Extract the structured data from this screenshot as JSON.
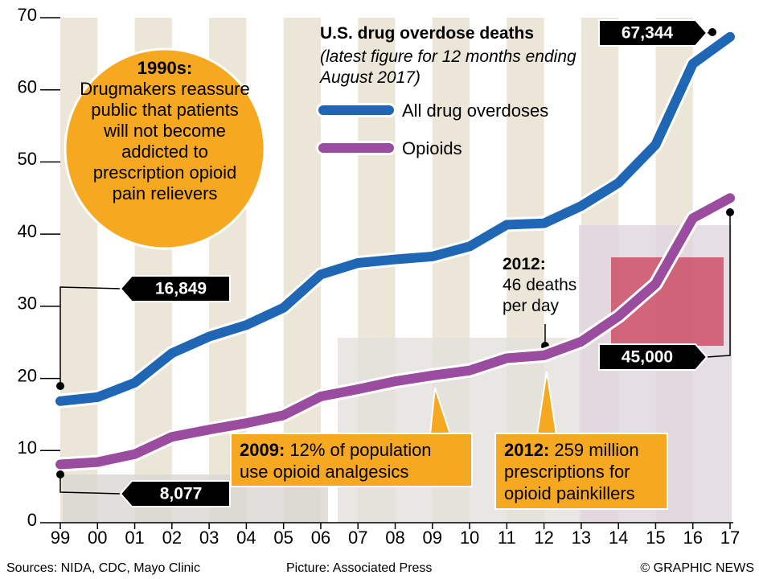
{
  "chart_data": {
    "type": "line",
    "title": "U.S. drug overdose deaths",
    "subtitle": "(latest figure for 12 months ending August 2017)",
    "categories": [
      "99",
      "00",
      "01",
      "02",
      "03",
      "04",
      "05",
      "06",
      "07",
      "08",
      "09",
      "10",
      "11",
      "12",
      "13",
      "14",
      "15",
      "16",
      "17"
    ],
    "ylim": [
      0,
      70
    ],
    "yticks": [
      0,
      10,
      20,
      30,
      40,
      50,
      60,
      70
    ],
    "grid": false,
    "series": [
      {
        "name": "All drug overdoses",
        "color": "#1f67b5",
        "values": [
          16.849,
          17.4,
          19.4,
          23.5,
          25.8,
          27.4,
          29.8,
          34.4,
          36.0,
          36.5,
          36.9,
          38.3,
          41.3,
          41.5,
          43.9,
          47.1,
          52.4,
          63.6,
          67.344
        ],
        "value_labels": [
          "16,849",
          null,
          null,
          null,
          null,
          null,
          null,
          null,
          null,
          null,
          null,
          null,
          null,
          null,
          null,
          null,
          null,
          null,
          "67,344"
        ]
      },
      {
        "name": "Opioids",
        "color": "#9a4c9f",
        "values": [
          8.077,
          8.4,
          9.5,
          11.9,
          12.9,
          13.8,
          14.9,
          17.5,
          18.5,
          19.6,
          20.4,
          21.1,
          22.8,
          23.2,
          25.1,
          28.6,
          33.1,
          42.2,
          45.0
        ],
        "value_labels": [
          "8,077",
          null,
          null,
          null,
          null,
          null,
          null,
          null,
          null,
          null,
          null,
          null,
          null,
          null,
          null,
          null,
          null,
          null,
          "45,000"
        ]
      }
    ],
    "annotations": [
      {
        "label": "1990s:",
        "text": "Drugmakers reassure public that patients will not become addicted to prescription opioid pain relievers"
      },
      {
        "label": "2012:",
        "text": "46 deaths per day"
      },
      {
        "label": "2009:",
        "text": "12% of population use opioid analgesics"
      },
      {
        "label": "2012:",
        "text": "259 million prescriptions for opioid painkillers"
      }
    ],
    "sources": "Sources: NIDA, CDC, Mayo Clinic",
    "credit": "Picture: Associated Press",
    "copyright": "© GRAPHIC NEWS"
  }
}
